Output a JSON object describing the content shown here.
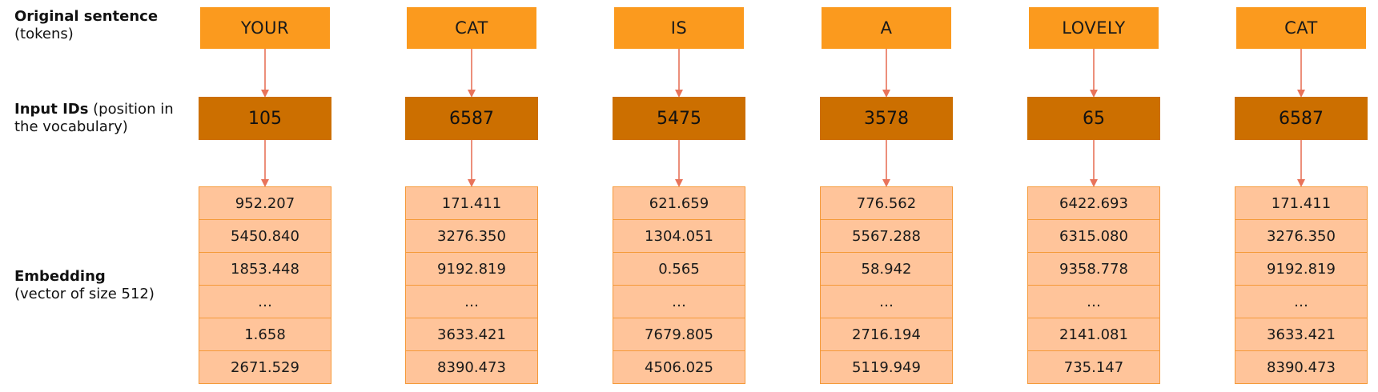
{
  "labels": {
    "tokens": {
      "title": "Original sentence",
      "subtitle": "(tokens)"
    },
    "input_ids": {
      "title": "Input IDs",
      "subtitle_inline": " (position in",
      "subtitle_line2": "the vocabulary)"
    },
    "embedding": {
      "title": "Embedding",
      "subtitle": "(vector of size 512)"
    }
  },
  "colors": {
    "token_fill": "#fb9a1e",
    "id_fill": "#cc6f00",
    "embedding_fill": "#ffc49a",
    "embedding_border": "#f59a3a",
    "arrow": "#e8735a"
  },
  "columns": [
    {
      "token": "YOUR",
      "id": "105",
      "embedding": [
        "952.207",
        "5450.840",
        "1853.448",
        "…",
        "1.658",
        "2671.529"
      ]
    },
    {
      "token": "CAT",
      "id": "6587",
      "embedding": [
        "171.411",
        "3276.350",
        "9192.819",
        "…",
        "3633.421",
        "8390.473"
      ]
    },
    {
      "token": "IS",
      "id": "5475",
      "embedding": [
        "621.659",
        "1304.051",
        "0.565",
        "…",
        "7679.805",
        "4506.025"
      ]
    },
    {
      "token": "A",
      "id": "3578",
      "embedding": [
        "776.562",
        "5567.288",
        "58.942",
        "…",
        "2716.194",
        "5119.949"
      ]
    },
    {
      "token": "LOVELY",
      "id": "65",
      "embedding": [
        "6422.693",
        "6315.080",
        "9358.778",
        "…",
        "2141.081",
        "735.147"
      ]
    },
    {
      "token": "CAT",
      "id": "6587",
      "embedding": [
        "171.411",
        "3276.350",
        "9192.819",
        "…",
        "3633.421",
        "8390.473"
      ]
    }
  ]
}
